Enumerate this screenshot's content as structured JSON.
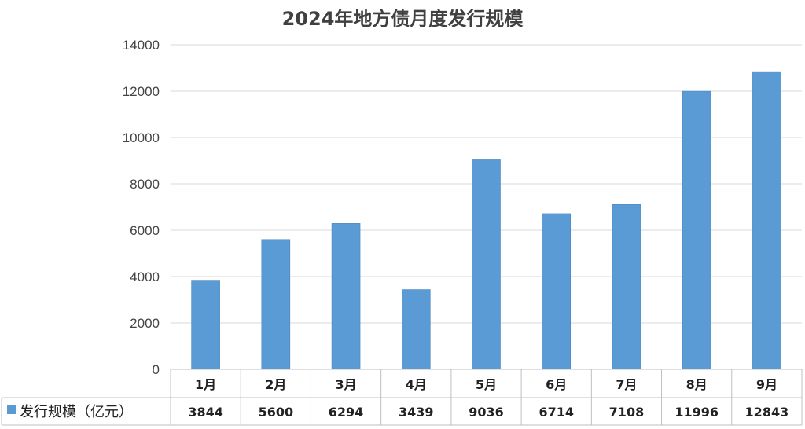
{
  "chart_data": {
    "type": "bar",
    "title": "2024年地方债月度发行规模",
    "categories": [
      "1月",
      "2月",
      "3月",
      "4月",
      "5月",
      "6月",
      "7月",
      "8月",
      "9月"
    ],
    "series": [
      {
        "name": "发行规模（亿元）",
        "values": [
          3844,
          5600,
          6294,
          3439,
          9036,
          6714,
          7108,
          11996,
          12843
        ],
        "color": "#5B9BD5"
      }
    ],
    "yticks": [
      "0",
      "2000",
      "4000",
      "6000",
      "8000",
      "10000",
      "12000",
      "14000"
    ],
    "ylim": [
      0,
      14000
    ],
    "grid": true,
    "legend": "data-table-left"
  }
}
